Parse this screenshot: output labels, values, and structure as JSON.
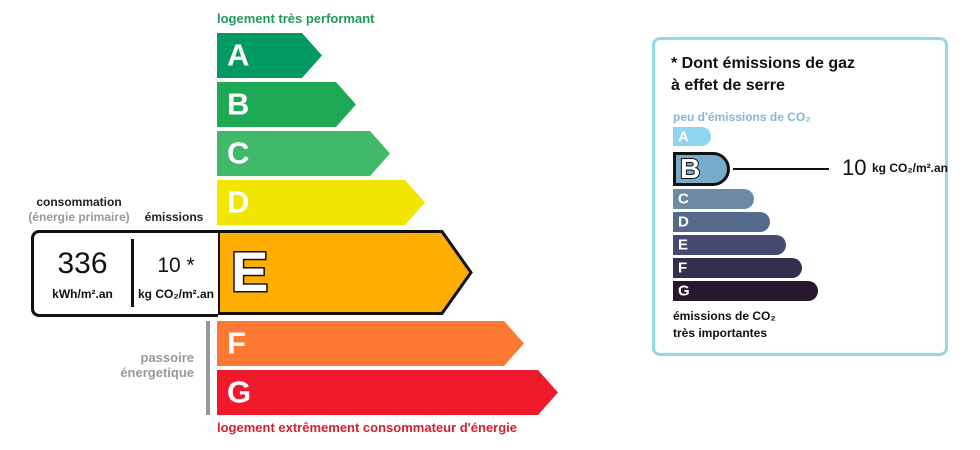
{
  "energy": {
    "top_caption": "logement très performant",
    "bottom_caption": "logement extrêmement consommateur d'énergie",
    "passoire_line1": "passoire",
    "passoire_line2": "énergetique",
    "selected": "E",
    "classes": [
      {
        "letter": "A",
        "color": "#009a62"
      },
      {
        "letter": "B",
        "color": "#1eaa54"
      },
      {
        "letter": "C",
        "color": "#40b96b"
      },
      {
        "letter": "D",
        "color": "#f1e600"
      },
      {
        "letter": "E",
        "color": "#fdae00"
      },
      {
        "letter": "F",
        "color": "#fc7833"
      },
      {
        "letter": "G",
        "color": "#ef1a2c"
      }
    ],
    "consumption_label": "consommation",
    "consumption_sub": "(énergie primaire)",
    "emissions_label": "émissions",
    "consumption_value": "336",
    "consumption_unit": "kWh/m².an",
    "emissions_value": "10 *",
    "emissions_unit": "kg CO₂/m².an"
  },
  "ghg": {
    "title_line1": "* Dont émissions de gaz",
    "title_line2": "à effet de serre",
    "top_caption": "peu d'émissions de CO₂",
    "bottom_line1": "émissions de CO₂",
    "bottom_line2": "très importantes",
    "selected": "B",
    "value": "10",
    "unit": "kg CO₂/m².an",
    "border_color": "#8fdbe7",
    "classes": [
      {
        "letter": "A",
        "color": "#8fd5f1"
      },
      {
        "letter": "B",
        "color": "#76acca"
      },
      {
        "letter": "C",
        "color": "#6a8ba2"
      },
      {
        "letter": "D",
        "color": "#556a8c"
      },
      {
        "letter": "E",
        "color": "#484970"
      },
      {
        "letter": "F",
        "color": "#342f4f"
      },
      {
        "letter": "G",
        "color": "#28172f"
      }
    ]
  }
}
